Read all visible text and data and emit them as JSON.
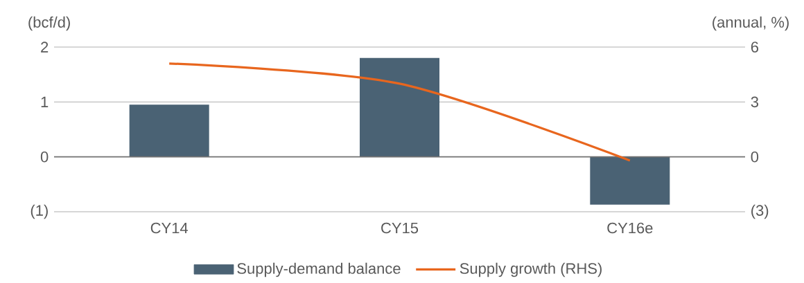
{
  "chart_data": {
    "type": "bar",
    "ylabel": "(bcf/d)",
    "y2label": "(annual, %)",
    "categories": [
      "CY14",
      "CY15",
      "CY16e"
    ],
    "series": [
      {
        "name": "Supply-demand balance",
        "color": "#4a6274",
        "values": [
          0.95,
          1.8,
          -0.87
        ]
      },
      {
        "name": "Supply growth (RHS)",
        "type": "line",
        "axis": "y2",
        "color": "#e8661e",
        "values": [
          5.1,
          4.0,
          -0.2
        ]
      }
    ],
    "ylim": [
      -1,
      2
    ],
    "yticks": [
      {
        "value": -1,
        "label": "(1)"
      },
      0,
      1,
      2
    ],
    "y2lim": [
      -3,
      6
    ],
    "y2ticks": [
      {
        "value": -3,
        "label": "(3)"
      },
      0,
      3,
      6
    ],
    "grid": "y",
    "legend": "bottom"
  }
}
